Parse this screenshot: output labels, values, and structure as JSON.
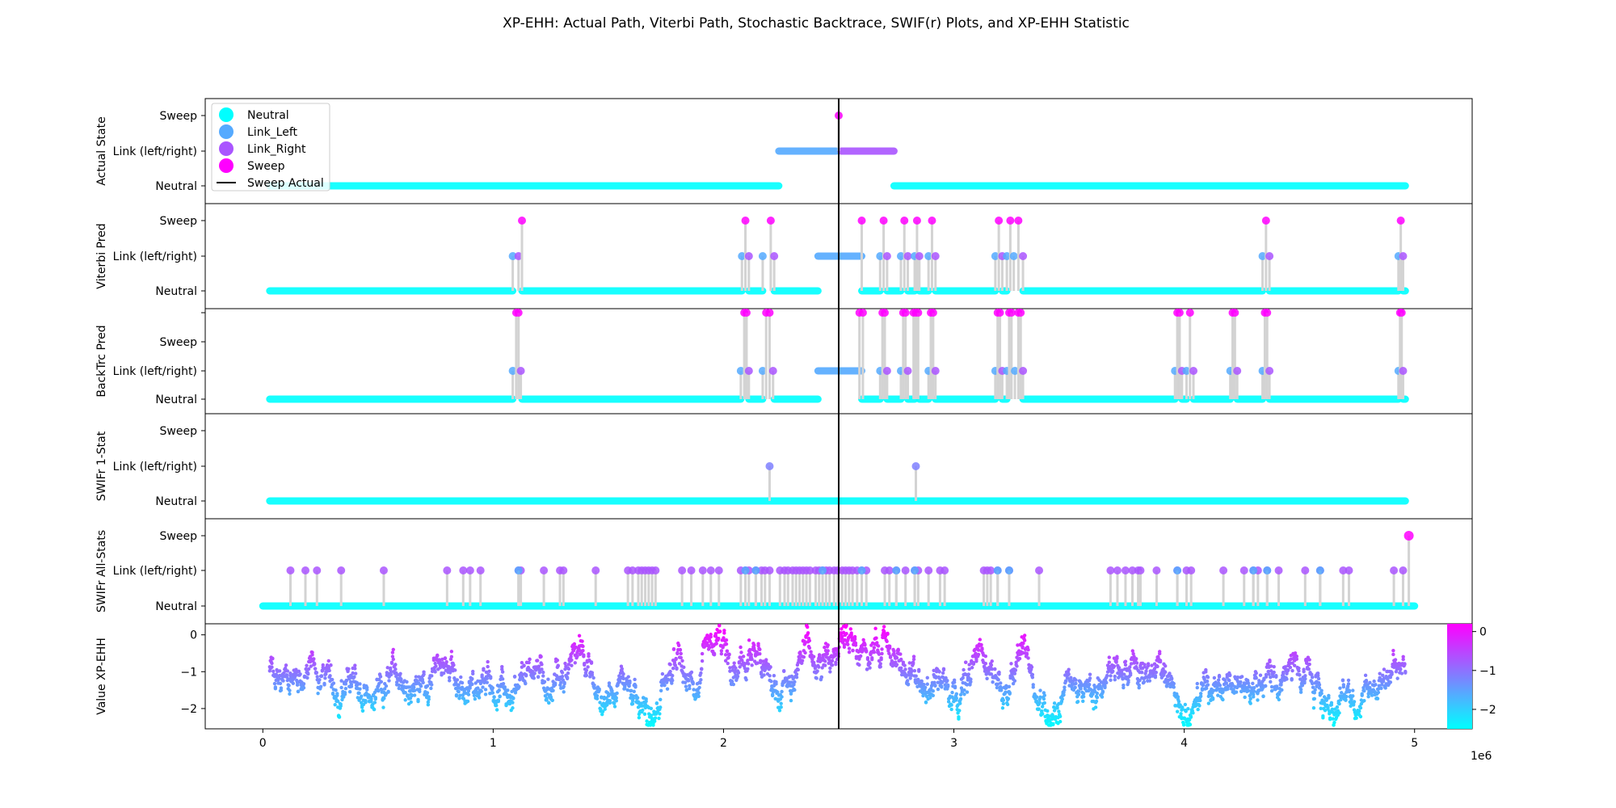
{
  "figure_title": "XP-EHH: Actual Path, Viterbi Path, Stochastic Backtrace, SWIF(r) Plots, and XP-EHH Statistic",
  "colors": {
    "neutral": "#00ffff",
    "link_left": "#55aaff",
    "link_right": "#aa55ff",
    "sweep": "#ff00ff",
    "stem": "#d3d3d3",
    "sweep_line": "#000000"
  },
  "chart_data": [
    {
      "type": "scatter",
      "panel": "actual",
      "ylabel": "Actual State",
      "yticks": [
        "Neutral",
        "Link (left/right)",
        "Sweep"
      ],
      "xlim": [
        -250000,
        5250000
      ],
      "sweep_actual": 2500000,
      "legend": {
        "placement": "top-left",
        "entries": [
          "Neutral",
          "Link_Left",
          "Link_Right",
          "Sweep",
          "Sweep Actual"
        ]
      },
      "segments": [
        {
          "state": "Neutral",
          "start": 30000,
          "end": 2240000
        },
        {
          "state": "Link_Left",
          "start": 2240000,
          "end": 2490000
        },
        {
          "state": "Link_Right",
          "start": 2510000,
          "end": 2740000
        },
        {
          "state": "Neutral",
          "start": 2740000,
          "end": 4960000
        }
      ],
      "points": [
        {
          "x": 2500000,
          "state": "Sweep"
        }
      ]
    },
    {
      "type": "scatter",
      "panel": "viterbi",
      "ylabel": "Viterbi Pred",
      "yticks": [
        "Neutral",
        "Link (left/right)",
        "Sweep"
      ],
      "segments": [
        {
          "state": "Neutral",
          "start": 30000,
          "end": 1085000
        },
        {
          "state": "Neutral",
          "start": 1125000,
          "end": 2080000
        },
        {
          "state": "Neutral",
          "start": 2110000,
          "end": 2170000
        },
        {
          "state": "Neutral",
          "start": 2220000,
          "end": 2410000
        },
        {
          "state": "Link_Left",
          "start": 2410000,
          "end": 2600000
        },
        {
          "state": "Neutral",
          "start": 2600000,
          "end": 2680000
        },
        {
          "state": "Neutral",
          "start": 2710000,
          "end": 2770000
        },
        {
          "state": "Neutral",
          "start": 2800000,
          "end": 2830000
        },
        {
          "state": "Neutral",
          "start": 2850000,
          "end": 2890000
        },
        {
          "state": "Neutral",
          "start": 2920000,
          "end": 3180000
        },
        {
          "state": "Neutral",
          "start": 3210000,
          "end": 3230000
        },
        {
          "state": "Neutral",
          "start": 3300000,
          "end": 4340000
        },
        {
          "state": "Neutral",
          "start": 4370000,
          "end": 4930000
        },
        {
          "state": "Neutral",
          "start": 4950000,
          "end": 4960000
        }
      ],
      "points": [
        {
          "x": 1085000,
          "state": "Link_Left"
        },
        {
          "x": 1110000,
          "state": "Link_Right"
        },
        {
          "x": 1125000,
          "state": "Sweep"
        },
        {
          "x": 2080000,
          "state": "Link_Left"
        },
        {
          "x": 2095000,
          "state": "Sweep"
        },
        {
          "x": 2110000,
          "state": "Link_Right"
        },
        {
          "x": 2170000,
          "state": "Link_Left"
        },
        {
          "x": 2205000,
          "state": "Sweep"
        },
        {
          "x": 2220000,
          "state": "Link_Right"
        },
        {
          "x": 2600000,
          "state": "Sweep"
        },
        {
          "x": 2680000,
          "state": "Link_Left"
        },
        {
          "x": 2695000,
          "state": "Sweep"
        },
        {
          "x": 2710000,
          "state": "Link_Right"
        },
        {
          "x": 2770000,
          "state": "Link_Left"
        },
        {
          "x": 2785000,
          "state": "Sweep"
        },
        {
          "x": 2800000,
          "state": "Link_Right"
        },
        {
          "x": 2830000,
          "state": "Link_Left"
        },
        {
          "x": 2840000,
          "state": "Sweep"
        },
        {
          "x": 2850000,
          "state": "Link_Right"
        },
        {
          "x": 2890000,
          "state": "Link_Left"
        },
        {
          "x": 2905000,
          "state": "Sweep"
        },
        {
          "x": 2920000,
          "state": "Link_Right"
        },
        {
          "x": 3180000,
          "state": "Link_Left"
        },
        {
          "x": 3195000,
          "state": "Sweep"
        },
        {
          "x": 3210000,
          "state": "Link_Right"
        },
        {
          "x": 3230000,
          "state": "Link_Left"
        },
        {
          "x": 3245000,
          "state": "Sweep"
        },
        {
          "x": 3260000,
          "state": "Link_Left"
        },
        {
          "x": 3280000,
          "state": "Sweep"
        },
        {
          "x": 3300000,
          "state": "Link_Right"
        },
        {
          "x": 4340000,
          "state": "Link_Left"
        },
        {
          "x": 4355000,
          "state": "Sweep"
        },
        {
          "x": 4370000,
          "state": "Link_Right"
        },
        {
          "x": 4930000,
          "state": "Link_Left"
        },
        {
          "x": 4940000,
          "state": "Sweep"
        },
        {
          "x": 4950000,
          "state": "Link_Right"
        }
      ]
    },
    {
      "type": "scatter",
      "panel": "backtrace",
      "ylabel": "BackTrc Pred",
      "yticks": [
        "Neutral",
        "Link (left/right)",
        "Sweep"
      ],
      "segments": [
        {
          "state": "Neutral",
          "start": 30000,
          "end": 1085000
        },
        {
          "state": "Neutral",
          "start": 1125000,
          "end": 2075000
        },
        {
          "state": "Neutral",
          "start": 2110000,
          "end": 2170000
        },
        {
          "state": "Neutral",
          "start": 2220000,
          "end": 2410000
        },
        {
          "state": "Link_Left",
          "start": 2410000,
          "end": 2600000
        },
        {
          "state": "Neutral",
          "start": 2600000,
          "end": 2680000
        },
        {
          "state": "Neutral",
          "start": 2710000,
          "end": 2770000
        },
        {
          "state": "Neutral",
          "start": 2800000,
          "end": 2830000
        },
        {
          "state": "Neutral",
          "start": 2850000,
          "end": 2890000
        },
        {
          "state": "Neutral",
          "start": 2920000,
          "end": 3180000
        },
        {
          "state": "Neutral",
          "start": 3210000,
          "end": 3230000
        },
        {
          "state": "Neutral",
          "start": 3300000,
          "end": 3960000
        },
        {
          "state": "Neutral",
          "start": 3990000,
          "end": 4010000
        },
        {
          "state": "Neutral",
          "start": 4040000,
          "end": 4200000
        },
        {
          "state": "Neutral",
          "start": 4230000,
          "end": 4340000
        },
        {
          "state": "Neutral",
          "start": 4370000,
          "end": 4930000
        },
        {
          "state": "Neutral",
          "start": 4950000,
          "end": 4960000
        }
      ],
      "points": [
        {
          "x": 1085000,
          "state": "Link_Left"
        },
        {
          "x": 1100000,
          "state": "Sweep"
        },
        {
          "x": 1110000,
          "state": "Sweep"
        },
        {
          "x": 1120000,
          "state": "Link_Right"
        },
        {
          "x": 2075000,
          "state": "Link_Left"
        },
        {
          "x": 2090000,
          "state": "Sweep"
        },
        {
          "x": 2100000,
          "state": "Sweep"
        },
        {
          "x": 2110000,
          "state": "Link_Right"
        },
        {
          "x": 2170000,
          "state": "Link_Left"
        },
        {
          "x": 2185000,
          "state": "Sweep"
        },
        {
          "x": 2200000,
          "state": "Sweep"
        },
        {
          "x": 2215000,
          "state": "Link_Right"
        },
        {
          "x": 2590000,
          "state": "Sweep"
        },
        {
          "x": 2605000,
          "state": "Sweep"
        },
        {
          "x": 2680000,
          "state": "Link_Left"
        },
        {
          "x": 2690000,
          "state": "Sweep"
        },
        {
          "x": 2700000,
          "state": "Sweep"
        },
        {
          "x": 2710000,
          "state": "Link_Right"
        },
        {
          "x": 2770000,
          "state": "Link_Left"
        },
        {
          "x": 2780000,
          "state": "Sweep"
        },
        {
          "x": 2790000,
          "state": "Sweep"
        },
        {
          "x": 2800000,
          "state": "Link_Right"
        },
        {
          "x": 2825000,
          "state": "Sweep"
        },
        {
          "x": 2835000,
          "state": "Sweep"
        },
        {
          "x": 2845000,
          "state": "Sweep"
        },
        {
          "x": 2890000,
          "state": "Link_Left"
        },
        {
          "x": 2900000,
          "state": "Sweep"
        },
        {
          "x": 2910000,
          "state": "Sweep"
        },
        {
          "x": 2920000,
          "state": "Link_Right"
        },
        {
          "x": 3180000,
          "state": "Link_Left"
        },
        {
          "x": 3190000,
          "state": "Sweep"
        },
        {
          "x": 3200000,
          "state": "Sweep"
        },
        {
          "x": 3210000,
          "state": "Link_Right"
        },
        {
          "x": 3230000,
          "state": "Link_Left"
        },
        {
          "x": 3240000,
          "state": "Sweep"
        },
        {
          "x": 3250000,
          "state": "Sweep"
        },
        {
          "x": 3265000,
          "state": "Link_Left"
        },
        {
          "x": 3280000,
          "state": "Sweep"
        },
        {
          "x": 3290000,
          "state": "Sweep"
        },
        {
          "x": 3300000,
          "state": "Link_Right"
        },
        {
          "x": 3960000,
          "state": "Link_Left"
        },
        {
          "x": 3970000,
          "state": "Sweep"
        },
        {
          "x": 3980000,
          "state": "Sweep"
        },
        {
          "x": 3990000,
          "state": "Link_Right"
        },
        {
          "x": 4010000,
          "state": "Link_Left"
        },
        {
          "x": 4025000,
          "state": "Sweep"
        },
        {
          "x": 4040000,
          "state": "Link_Right"
        },
        {
          "x": 4200000,
          "state": "Link_Left"
        },
        {
          "x": 4210000,
          "state": "Sweep"
        },
        {
          "x": 4220000,
          "state": "Sweep"
        },
        {
          "x": 4230000,
          "state": "Link_Right"
        },
        {
          "x": 4340000,
          "state": "Link_Left"
        },
        {
          "x": 4350000,
          "state": "Sweep"
        },
        {
          "x": 4360000,
          "state": "Sweep"
        },
        {
          "x": 4370000,
          "state": "Link_Right"
        },
        {
          "x": 4930000,
          "state": "Link_Left"
        },
        {
          "x": 4937000,
          "state": "Sweep"
        },
        {
          "x": 4944000,
          "state": "Sweep"
        },
        {
          "x": 4950000,
          "state": "Link_Right"
        }
      ]
    },
    {
      "type": "scatter",
      "panel": "swifr1",
      "ylabel": "SWIFr 1-Stat",
      "yticks": [
        "Neutral",
        "Link (left/right)",
        "Sweep"
      ],
      "segments": [
        {
          "state": "Neutral",
          "start": 30000,
          "end": 4960000
        }
      ],
      "points": [
        {
          "x": 2200000,
          "state": "Link"
        },
        {
          "x": 2835000,
          "state": "Link"
        }
      ]
    },
    {
      "type": "scatter",
      "panel": "swifrall",
      "ylabel": "SWIFr All-Stats",
      "yticks": [
        "Neutral",
        "Link (left/right)",
        "Sweep"
      ],
      "segments": [
        {
          "state": "Neutral",
          "start": 0,
          "end": 5000000
        }
      ],
      "link_points": [
        120000,
        185000,
        235000,
        340000,
        525000,
        800000,
        870000,
        900000,
        945000,
        1110000,
        1120000,
        1220000,
        1290000,
        1305000,
        1445000,
        1585000,
        1605000,
        1630000,
        1645000,
        1660000,
        1675000,
        1690000,
        1705000,
        1820000,
        1860000,
        1910000,
        1945000,
        1980000,
        2075000,
        2095000,
        2110000,
        2140000,
        2165000,
        2180000,
        2200000,
        2245000,
        2265000,
        2280000,
        2300000,
        2315000,
        2330000,
        2345000,
        2360000,
        2375000,
        2400000,
        2415000,
        2430000,
        2445000,
        2460000,
        2480000,
        2495000,
        2515000,
        2530000,
        2545000,
        2560000,
        2580000,
        2600000,
        2620000,
        2700000,
        2720000,
        2750000,
        2790000,
        2830000,
        2845000,
        2890000,
        2940000,
        2960000,
        3130000,
        3145000,
        3160000,
        3190000,
        3240000,
        3370000,
        3680000,
        3710000,
        3745000,
        3775000,
        3800000,
        3810000,
        3880000,
        3970000,
        4010000,
        4030000,
        4170000,
        4260000,
        4300000,
        4320000,
        4360000,
        4410000,
        4525000,
        4590000,
        4690000,
        4715000,
        4910000,
        4950000
      ],
      "link_left_points": [
        1110000,
        2095000,
        2140000,
        2430000,
        2600000,
        2750000,
        2830000,
        3190000,
        3240000,
        3970000,
        4300000,
        4360000,
        4590000
      ],
      "sweep_points": [
        4975000
      ]
    },
    {
      "type": "scatter",
      "panel": "xpehh",
      "ylabel": "Value XP-EHH",
      "ylim": [
        -2.55,
        0.3
      ],
      "yticks": [
        0,
        -1,
        -2
      ],
      "xticks": [
        0,
        1,
        2,
        3,
        4,
        5
      ],
      "x_offset_label": "1e6",
      "x_range": [
        30000,
        4960000
      ],
      "colorbar": {
        "min": -2.5,
        "max": 0.2,
        "ticks": [
          0,
          -1,
          -2
        ]
      }
    }
  ]
}
